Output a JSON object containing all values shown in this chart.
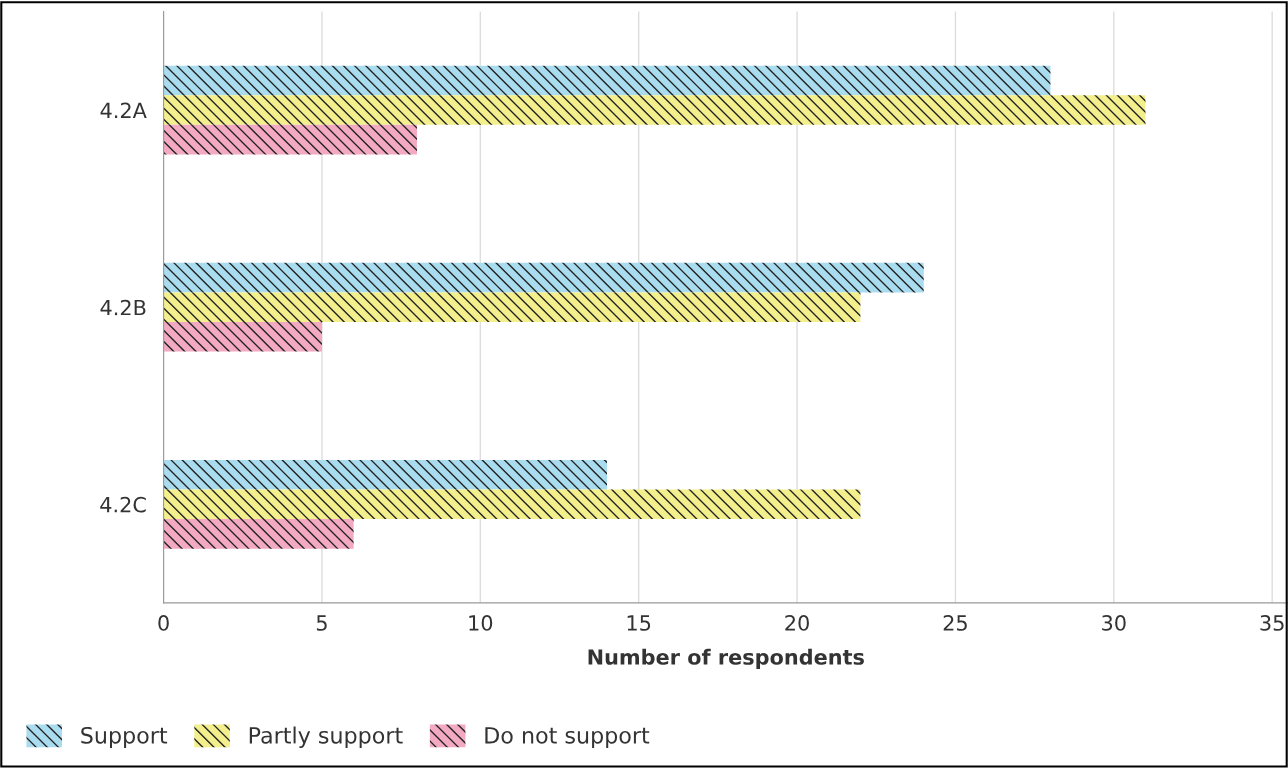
{
  "chart_data": {
    "type": "bar",
    "orientation": "horizontal",
    "xlabel": "Number of respondents",
    "categories": [
      "4.2A",
      "4.2B",
      "4.2C"
    ],
    "series": [
      {
        "name": "Support",
        "color": "#a9dcef",
        "values": [
          28,
          24,
          14
        ]
      },
      {
        "name": "Partly support",
        "color": "#f3ef8c",
        "values": [
          31,
          22,
          22
        ]
      },
      {
        "name": "Do not support",
        "color": "#f3a9c2",
        "values": [
          8,
          5,
          6
        ]
      }
    ],
    "xlim": [
      0,
      35.5
    ],
    "xticks": [
      0,
      5,
      10,
      15,
      20,
      25,
      30,
      35
    ],
    "grid": "x",
    "legend": "bottom left"
  }
}
